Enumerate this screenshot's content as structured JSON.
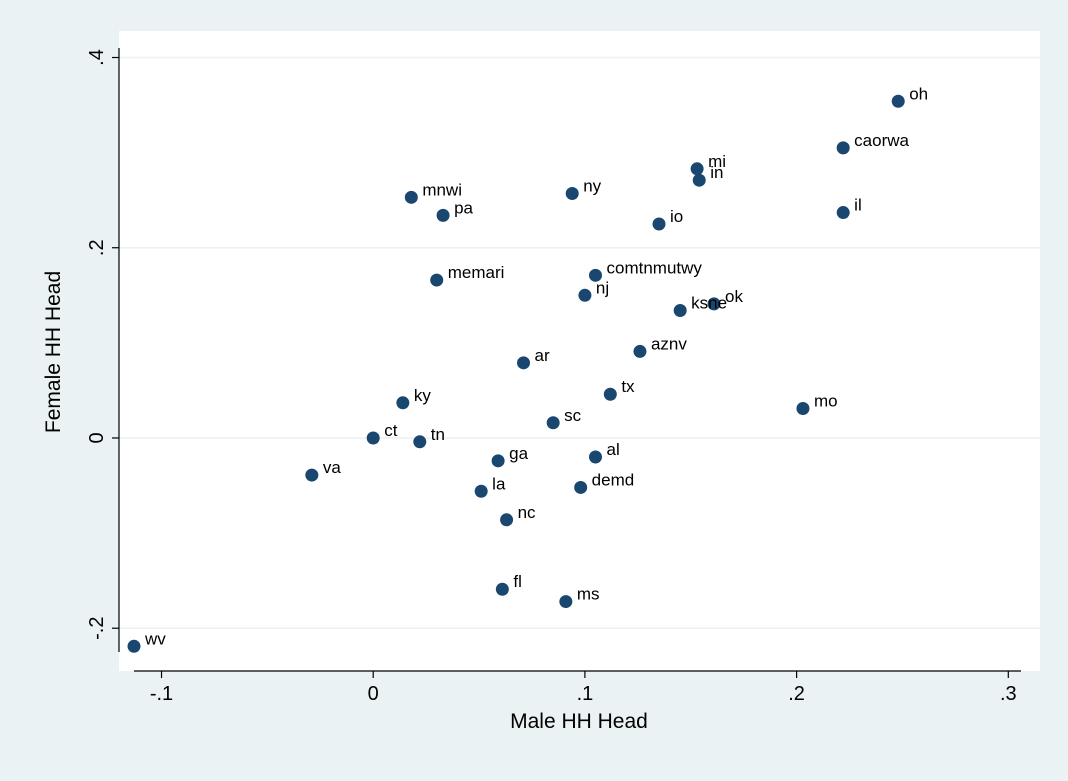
{
  "chart_data": {
    "type": "scatter",
    "xlabel": "Male HH Head",
    "ylabel": "Female HH Head",
    "xlim": [
      -0.113,
      0.306
    ],
    "ylim": [
      -0.225,
      0.41
    ],
    "xticks": [
      {
        "value": -0.1,
        "label": "-.1"
      },
      {
        "value": 0.0,
        "label": "0"
      },
      {
        "value": 0.1,
        "label": ".1"
      },
      {
        "value": 0.2,
        "label": ".2"
      },
      {
        "value": 0.3,
        "label": ".3"
      }
    ],
    "yticks": [
      {
        "value": -0.2,
        "label": "-.2"
      },
      {
        "value": 0.0,
        "label": "0"
      },
      {
        "value": 0.2,
        "label": ".2"
      },
      {
        "value": 0.4,
        "label": ".4"
      }
    ],
    "grid": {
      "horizontal": true,
      "vertical": false
    },
    "colors": {
      "marker": "#1a476f",
      "grid": "#eaf2f3",
      "plot_bg": "#ffffff",
      "background": "#eaf2f3",
      "axis": "#000000"
    },
    "points": [
      {
        "label": "oh",
        "x": 0.248,
        "y": 0.354
      },
      {
        "label": "caorwa",
        "x": 0.222,
        "y": 0.305
      },
      {
        "label": "mi",
        "x": 0.153,
        "y": 0.283
      },
      {
        "label": "in",
        "x": 0.154,
        "y": 0.271
      },
      {
        "label": "ny",
        "x": 0.094,
        "y": 0.257
      },
      {
        "label": "mnwi",
        "x": 0.018,
        "y": 0.253
      },
      {
        "label": "pa",
        "x": 0.033,
        "y": 0.234
      },
      {
        "label": "il",
        "x": 0.222,
        "y": 0.237
      },
      {
        "label": "io",
        "x": 0.135,
        "y": 0.225
      },
      {
        "label": "comtnmutwy",
        "x": 0.105,
        "y": 0.171
      },
      {
        "label": "memari",
        "x": 0.03,
        "y": 0.166
      },
      {
        "label": "nj",
        "x": 0.1,
        "y": 0.15
      },
      {
        "label": "ok",
        "x": 0.161,
        "y": 0.141
      },
      {
        "label": "ksne",
        "x": 0.145,
        "y": 0.134
      },
      {
        "label": "aznv",
        "x": 0.126,
        "y": 0.091
      },
      {
        "label": "ar",
        "x": 0.071,
        "y": 0.079
      },
      {
        "label": "tx",
        "x": 0.112,
        "y": 0.046
      },
      {
        "label": "ky",
        "x": 0.014,
        "y": 0.037
      },
      {
        "label": "mo",
        "x": 0.203,
        "y": 0.031
      },
      {
        "label": "sc",
        "x": 0.085,
        "y": 0.016
      },
      {
        "label": "ct",
        "x": 0.0,
        "y": 0.0
      },
      {
        "label": "tn",
        "x": 0.022,
        "y": -0.004
      },
      {
        "label": "ga",
        "x": 0.059,
        "y": -0.024
      },
      {
        "label": "al",
        "x": 0.105,
        "y": -0.02
      },
      {
        "label": "va",
        "x": -0.029,
        "y": -0.039
      },
      {
        "label": "la",
        "x": 0.051,
        "y": -0.056
      },
      {
        "label": "demd",
        "x": 0.098,
        "y": -0.052
      },
      {
        "label": "nc",
        "x": 0.063,
        "y": -0.086
      },
      {
        "label": "fl",
        "x": 0.061,
        "y": -0.159
      },
      {
        "label": "ms",
        "x": 0.091,
        "y": -0.172
      },
      {
        "label": "wv",
        "x": -0.113,
        "y": -0.219
      }
    ]
  }
}
